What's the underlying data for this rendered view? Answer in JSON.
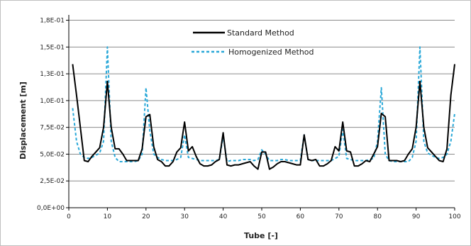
{
  "chart_data": {
    "type": "line",
    "title": "",
    "xlabel": "Tube [-]",
    "ylabel": "Displacement [m]",
    "xlim": [
      0,
      100
    ],
    "ylim": [
      0,
      0.18
    ],
    "x_ticks": [
      0,
      10,
      20,
      30,
      40,
      50,
      60,
      70,
      80,
      90,
      100
    ],
    "x_tick_labels": [
      "0",
      "10",
      "20",
      "30",
      "40",
      "50",
      "60",
      "70",
      "80",
      "90",
      "100"
    ],
    "y_ticks": [
      0,
      0.025,
      0.05,
      0.075,
      0.1,
      0.125,
      0.15,
      0.175
    ],
    "y_tick_labels": [
      "0,0E+00",
      "2,5E-02",
      "5,0E-02",
      "7,5E-02",
      "1,0E-01",
      "1,3E-01",
      "1,5E-01",
      "1,8E-01"
    ],
    "grid": true,
    "legend_position": "top-center",
    "series": [
      {
        "name": "Standard Method",
        "color": "#000000",
        "style": "solid",
        "x": [
          1,
          2,
          3,
          4,
          5,
          6,
          7,
          8,
          9,
          10,
          11,
          12,
          13,
          14,
          15,
          16,
          17,
          18,
          19,
          20,
          21,
          22,
          23,
          24,
          25,
          26,
          27,
          28,
          29,
          30,
          31,
          32,
          33,
          34,
          35,
          36,
          37,
          38,
          39,
          40,
          41,
          42,
          43,
          44,
          45,
          46,
          47,
          48,
          49,
          50,
          51,
          52,
          53,
          54,
          55,
          56,
          57,
          58,
          59,
          60,
          61,
          62,
          63,
          64,
          65,
          66,
          67,
          68,
          69,
          70,
          71,
          72,
          73,
          74,
          75,
          76,
          77,
          78,
          79,
          80,
          81,
          82,
          83,
          84,
          85,
          86,
          87,
          88,
          89,
          90,
          91,
          92,
          93,
          94,
          95,
          96,
          97,
          98,
          99,
          100
        ],
        "values": [
          0.134,
          0.105,
          0.075,
          0.044,
          0.043,
          0.048,
          0.052,
          0.056,
          0.075,
          0.118,
          0.075,
          0.055,
          0.055,
          0.05,
          0.044,
          0.044,
          0.044,
          0.044,
          0.055,
          0.085,
          0.087,
          0.057,
          0.045,
          0.043,
          0.039,
          0.039,
          0.043,
          0.052,
          0.056,
          0.08,
          0.053,
          0.057,
          0.048,
          0.041,
          0.039,
          0.039,
          0.04,
          0.043,
          0.045,
          0.07,
          0.04,
          0.039,
          0.04,
          0.04,
          0.041,
          0.042,
          0.043,
          0.039,
          0.036,
          0.052,
          0.052,
          0.036,
          0.038,
          0.041,
          0.043,
          0.043,
          0.042,
          0.041,
          0.04,
          0.04,
          0.068,
          0.045,
          0.044,
          0.045,
          0.039,
          0.039,
          0.041,
          0.044,
          0.057,
          0.053,
          0.08,
          0.053,
          0.052,
          0.039,
          0.039,
          0.041,
          0.044,
          0.043,
          0.05,
          0.057,
          0.088,
          0.085,
          0.044,
          0.044,
          0.044,
          0.043,
          0.044,
          0.05,
          0.055,
          0.075,
          0.118,
          0.075,
          0.056,
          0.052,
          0.048,
          0.044,
          0.043,
          0.055,
          0.105,
          0.134
        ]
      },
      {
        "name": "Homogenized Method",
        "color": "#29a8d8",
        "style": "dashed",
        "x": [
          1,
          2,
          3,
          4,
          5,
          6,
          7,
          8,
          9,
          10,
          11,
          12,
          13,
          14,
          15,
          16,
          17,
          18,
          19,
          20,
          21,
          22,
          23,
          24,
          25,
          26,
          27,
          28,
          29,
          30,
          31,
          32,
          33,
          34,
          35,
          36,
          37,
          38,
          39,
          40,
          41,
          42,
          43,
          44,
          45,
          46,
          47,
          48,
          49,
          50,
          51,
          52,
          53,
          54,
          55,
          56,
          57,
          58,
          59,
          60,
          61,
          62,
          63,
          64,
          65,
          66,
          67,
          68,
          69,
          70,
          71,
          72,
          73,
          74,
          75,
          76,
          77,
          78,
          79,
          80,
          81,
          82,
          83,
          84,
          85,
          86,
          87,
          88,
          89,
          90,
          91,
          92,
          93,
          94,
          95,
          96,
          97,
          98,
          99,
          100
        ],
        "values": [
          0.093,
          0.062,
          0.05,
          0.047,
          0.046,
          0.047,
          0.049,
          0.051,
          0.062,
          0.15,
          0.062,
          0.047,
          0.043,
          0.043,
          0.043,
          0.043,
          0.043,
          0.044,
          0.05,
          0.112,
          0.072,
          0.05,
          0.047,
          0.045,
          0.044,
          0.044,
          0.044,
          0.045,
          0.047,
          0.068,
          0.047,
          0.046,
          0.045,
          0.044,
          0.044,
          0.044,
          0.044,
          0.044,
          0.045,
          0.067,
          0.043,
          0.044,
          0.044,
          0.044,
          0.045,
          0.045,
          0.045,
          0.044,
          0.045,
          0.054,
          0.05,
          0.044,
          0.044,
          0.044,
          0.045,
          0.045,
          0.044,
          0.044,
          0.044,
          0.044,
          0.068,
          0.045,
          0.044,
          0.044,
          0.044,
          0.044,
          0.044,
          0.044,
          0.046,
          0.048,
          0.073,
          0.046,
          0.045,
          0.044,
          0.044,
          0.044,
          0.044,
          0.045,
          0.046,
          0.062,
          0.112,
          0.05,
          0.044,
          0.043,
          0.043,
          0.043,
          0.043,
          0.043,
          0.047,
          0.062,
          0.15,
          0.062,
          0.051,
          0.049,
          0.047,
          0.046,
          0.047,
          0.05,
          0.062,
          0.088
        ]
      }
    ]
  }
}
